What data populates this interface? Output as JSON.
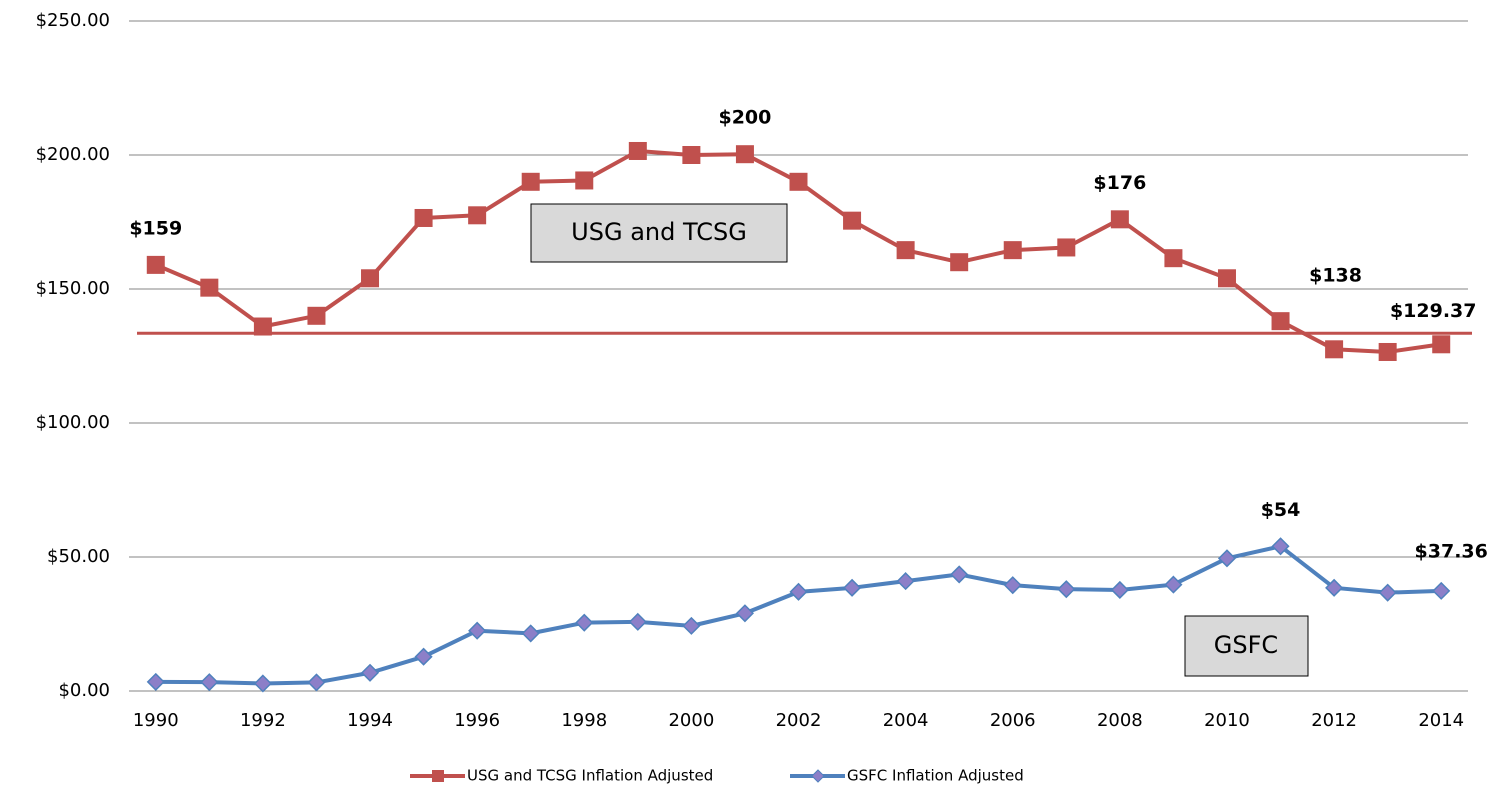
{
  "chart_data": {
    "type": "line",
    "categories": [
      "1990",
      null,
      "1992",
      null,
      "1994",
      null,
      "1996",
      null,
      "1998",
      null,
      "2000",
      null,
      "2002",
      null,
      "2004",
      null,
      "2006",
      null,
      "2008",
      null,
      "2010",
      null,
      "2012",
      null,
      "2014"
    ],
    "series": [
      {
        "name": "USG and TCSG Inflation Adjusted",
        "color": "#c0504d",
        "marker": "square",
        "values": [
          159,
          150.5,
          136,
          140,
          154,
          176.5,
          177.5,
          190,
          190.5,
          201.5,
          200,
          200.3,
          190,
          175.5,
          164.5,
          160,
          164.5,
          165.5,
          176,
          161.5,
          154,
          138,
          127.5,
          126.5,
          129.37
        ],
        "value_labels": [
          "$159",
          null,
          null,
          null,
          null,
          null,
          null,
          null,
          null,
          null,
          null,
          "$200",
          null,
          null,
          null,
          null,
          null,
          null,
          "$176",
          null,
          null,
          "$138",
          null,
          null,
          "$129.37"
        ]
      },
      {
        "name": "GSFC Inflation Adjusted",
        "color": "#4f81bd",
        "marker": "diamond",
        "values": [
          3.4,
          3.3,
          2.8,
          3.2,
          6.8,
          12.8,
          22.5,
          21.5,
          25.5,
          25.8,
          24.3,
          29,
          37,
          38.5,
          41,
          43.5,
          39.5,
          38,
          37.7,
          39.7,
          49.5,
          54,
          38.5,
          36.7,
          37.36
        ],
        "value_labels": [
          null,
          null,
          null,
          null,
          null,
          null,
          null,
          null,
          null,
          null,
          null,
          null,
          null,
          null,
          null,
          null,
          null,
          null,
          null,
          null,
          null,
          "$54",
          null,
          null,
          "$37.36"
        ]
      }
    ],
    "reference_line": {
      "value": 133.5,
      "color": "#c0504d"
    },
    "annotations": [
      "USG and TCSG",
      "GSFC"
    ],
    "ylim": [
      0,
      250
    ],
    "yticks": [
      {
        "value": 0,
        "label": "$0.00"
      },
      {
        "value": 50,
        "label": "$50.00"
      },
      {
        "value": 100,
        "label": "$100.00"
      },
      {
        "value": 150,
        "label": "$150.00"
      },
      {
        "value": 200,
        "label": "$200.00"
      },
      {
        "value": 250,
        "label": "$250.00"
      }
    ],
    "grid": true,
    "legend": "bottom"
  }
}
